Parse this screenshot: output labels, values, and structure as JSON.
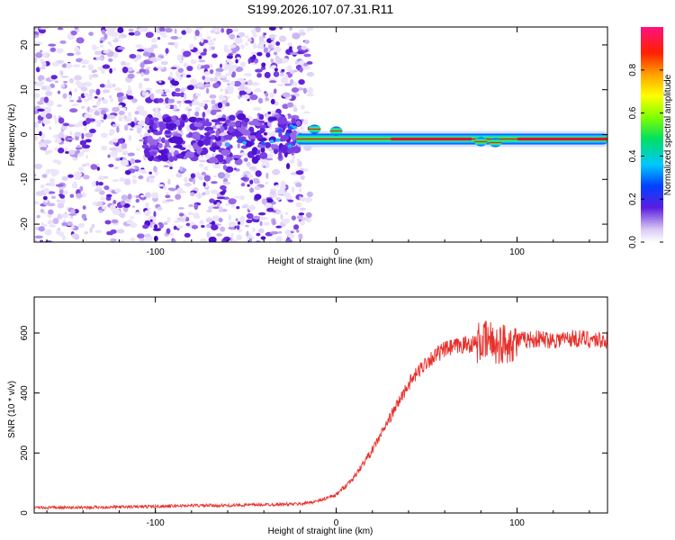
{
  "chart_data": [
    {
      "type": "heatmap",
      "title": "S199.2026.107.07.31.R11",
      "xlabel": "Height of straight line (km)",
      "ylabel": "Frequency (Hz)",
      "xlim": [
        -167,
        150
      ],
      "ylim": [
        -24,
        24
      ],
      "xticks": [
        "-100",
        "0",
        "100"
      ],
      "yticks": [
        "-20",
        "-10",
        "0",
        "10",
        "20"
      ],
      "grid": false,
      "colorbar": {
        "label": "Normalized spectral amplitude",
        "range": [
          0.0,
          1.0
        ],
        "ticks": [
          "0.0",
          "0.2",
          "0.4",
          "0.6",
          "0.8"
        ]
      },
      "features": {
        "noise_region_x": [
          -167,
          -20
        ],
        "strong_band_x": [
          -22,
          150
        ],
        "band_center_hz": -1,
        "peak_amplitude": 1.0
      }
    },
    {
      "type": "line",
      "xlabel": "Height of straight line (km)",
      "ylabel": "SNR (10 * v/v)",
      "xlim": [
        -167,
        150
      ],
      "ylim": [
        0,
        720
      ],
      "xticks": [
        "-100",
        "0",
        "100"
      ],
      "yticks": [
        "0",
        "200",
        "400",
        "600"
      ],
      "grid": false,
      "color": "#e8302b",
      "series": [
        {
          "x": [
            -167,
            -150,
            -120,
            -100,
            -80,
            -60,
            -40,
            -20,
            -10,
            0,
            10,
            20,
            30,
            40,
            50,
            60,
            70,
            80,
            85,
            90,
            95,
            100,
            110,
            120,
            130,
            140,
            150
          ],
          "values": [
            18,
            18,
            20,
            22,
            25,
            25,
            28,
            30,
            40,
            60,
            120,
            210,
            320,
            430,
            505,
            545,
            560,
            568,
            575,
            560,
            570,
            575,
            580,
            578,
            582,
            580,
            575
          ]
        }
      ]
    }
  ]
}
